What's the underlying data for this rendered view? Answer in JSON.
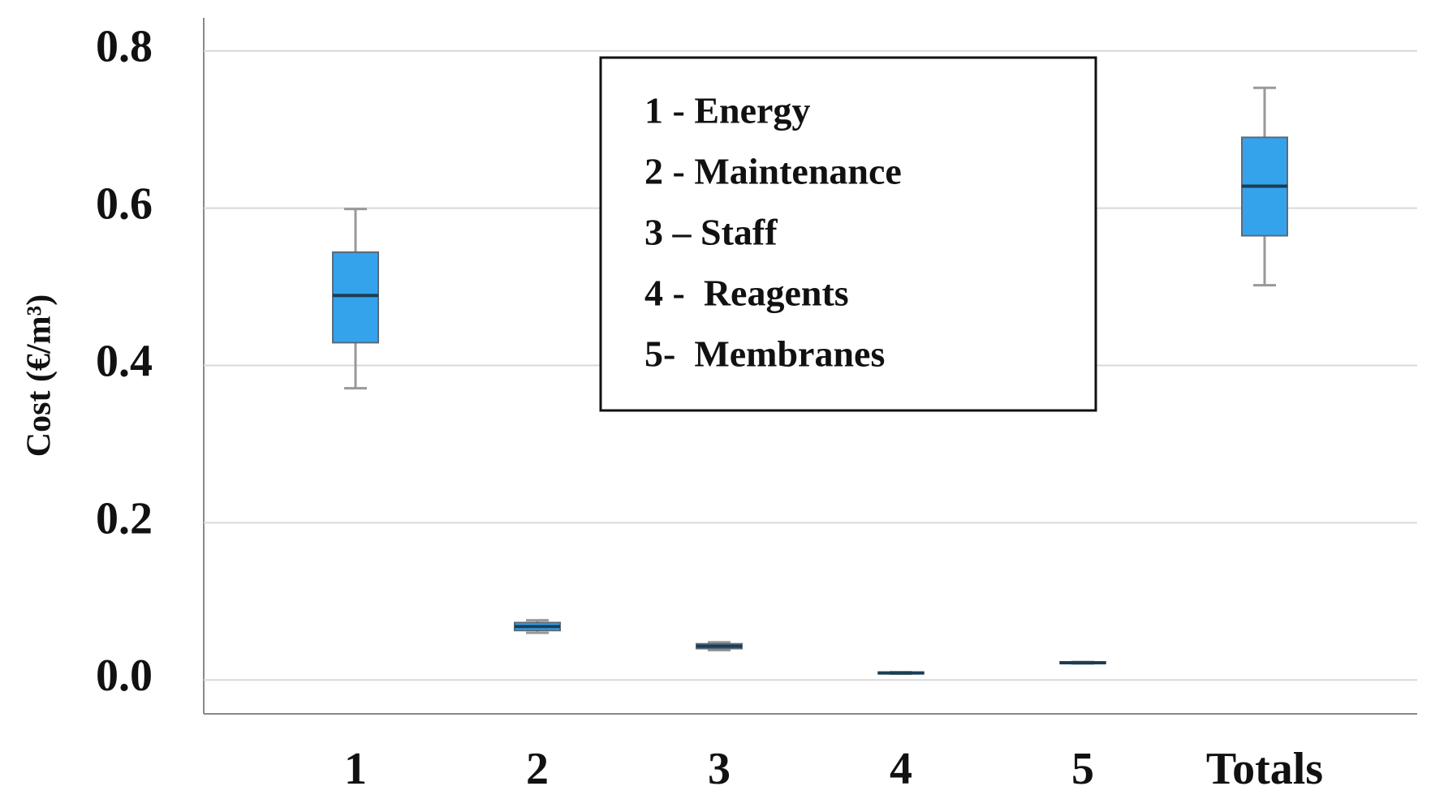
{
  "chart_data": {
    "type": "box",
    "y_label": "Cost (€/m³)",
    "categories": [
      "1",
      "2",
      "3",
      "4",
      "5",
      "Totals"
    ],
    "min": [
      0.371,
      0.06,
      0.038,
      0.008,
      0.021,
      0.502
    ],
    "q1": [
      0.429,
      0.063,
      0.04,
      0.008,
      0.021,
      0.565
    ],
    "median": [
      0.489,
      0.068,
      0.043,
      0.009,
      0.022,
      0.628
    ],
    "q3": [
      0.544,
      0.073,
      0.046,
      0.01,
      0.023,
      0.69
    ],
    "max": [
      0.599,
      0.076,
      0.048,
      0.01,
      0.023,
      0.753
    ],
    "color": "#35a3ec",
    "ylim": [
      -0.043,
      0.842
    ],
    "yticks": [
      {
        "value": 0,
        "label": "0.0"
      },
      0.2,
      0.4,
      0.6,
      0.8
    ],
    "grid": true,
    "legend_text": [
      "1 - Energy",
      "2 - Maintenance",
      "3 – Staff",
      "4 -  Reagents",
      "5-  Membranes"
    ]
  }
}
